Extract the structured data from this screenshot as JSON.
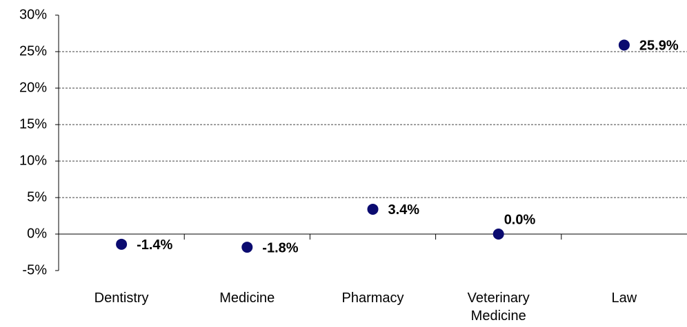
{
  "chart_data": {
    "type": "scatter",
    "categories": [
      "Dentistry",
      "Medicine",
      "Pharmacy",
      "Veterinary Medicine",
      "Law"
    ],
    "values": [
      -1.4,
      -1.8,
      3.4,
      0.0,
      25.9
    ],
    "value_labels": [
      "-1.4%",
      "-1.8%",
      "3.4%",
      "0.0%",
      "25.9%"
    ],
    "color": "#0b0b70",
    "ylim": [
      -5,
      30
    ],
    "yticks": [
      {
        "value": -5,
        "label": "-5%"
      },
      {
        "value": 0,
        "label": "0%"
      },
      {
        "value": 5,
        "label": "5%"
      },
      {
        "value": 10,
        "label": "10%"
      },
      {
        "value": 15,
        "label": "15%"
      },
      {
        "value": 20,
        "label": "20%"
      },
      {
        "value": 25,
        "label": "25%"
      },
      {
        "value": 30,
        "label": "30%"
      }
    ],
    "grid": true
  }
}
